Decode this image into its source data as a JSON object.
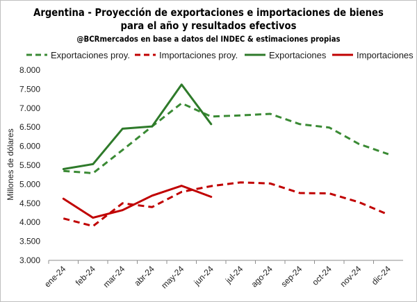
{
  "chart_data": {
    "type": "line",
    "title": "Argentina - Proyección de exportaciones e importaciones de bienes",
    "title_line2": "para el año y resultados efectivos",
    "subtitle": "@BCRmercados en base a datos del INDEC & estimaciones propias",
    "xlabel": "",
    "ylabel": "Millones de dólares",
    "ylim": [
      3000,
      8000
    ],
    "y_ticks": [
      "3.000",
      "3.500",
      "4.000",
      "4.500",
      "5.000",
      "5.500",
      "6.000",
      "6.500",
      "7.000",
      "7.500",
      "8.000"
    ],
    "y_tick_values": [
      3000,
      3500,
      4000,
      4500,
      5000,
      5500,
      6000,
      6500,
      7000,
      7500,
      8000
    ],
    "categories": [
      "ene-24",
      "feb-24",
      "mar-24",
      "abr-24",
      "may-24",
      "jun-24",
      "jul-24",
      "ago-24",
      "sep-24",
      "oct-24",
      "nov-24",
      "dic-24"
    ],
    "legend_position": "top",
    "grid": false,
    "series": [
      {
        "name": "Exportaciones proy.",
        "color": "#3a8a34",
        "dashed": true,
        "values": [
          5350,
          5290,
          5900,
          6520,
          7130,
          6780,
          6810,
          6850,
          6580,
          6490,
          6060,
          5790
        ]
      },
      {
        "name": "Importaciones proy.",
        "color": "#c00000",
        "dashed": true,
        "values": [
          4100,
          3900,
          4500,
          4400,
          4800,
          4950,
          5050,
          5020,
          4770,
          4760,
          4530,
          4200
        ]
      },
      {
        "name": "Exportaciones",
        "color": "#2e7a2a",
        "dashed": false,
        "values": [
          5400,
          5530,
          6460,
          6520,
          7620,
          6580,
          null,
          null,
          null,
          null,
          null,
          null
        ]
      },
      {
        "name": "Importaciones",
        "color": "#c00000",
        "dashed": false,
        "values": [
          4620,
          4120,
          4320,
          4700,
          4960,
          4670,
          null,
          null,
          null,
          null,
          null,
          null
        ]
      }
    ]
  }
}
